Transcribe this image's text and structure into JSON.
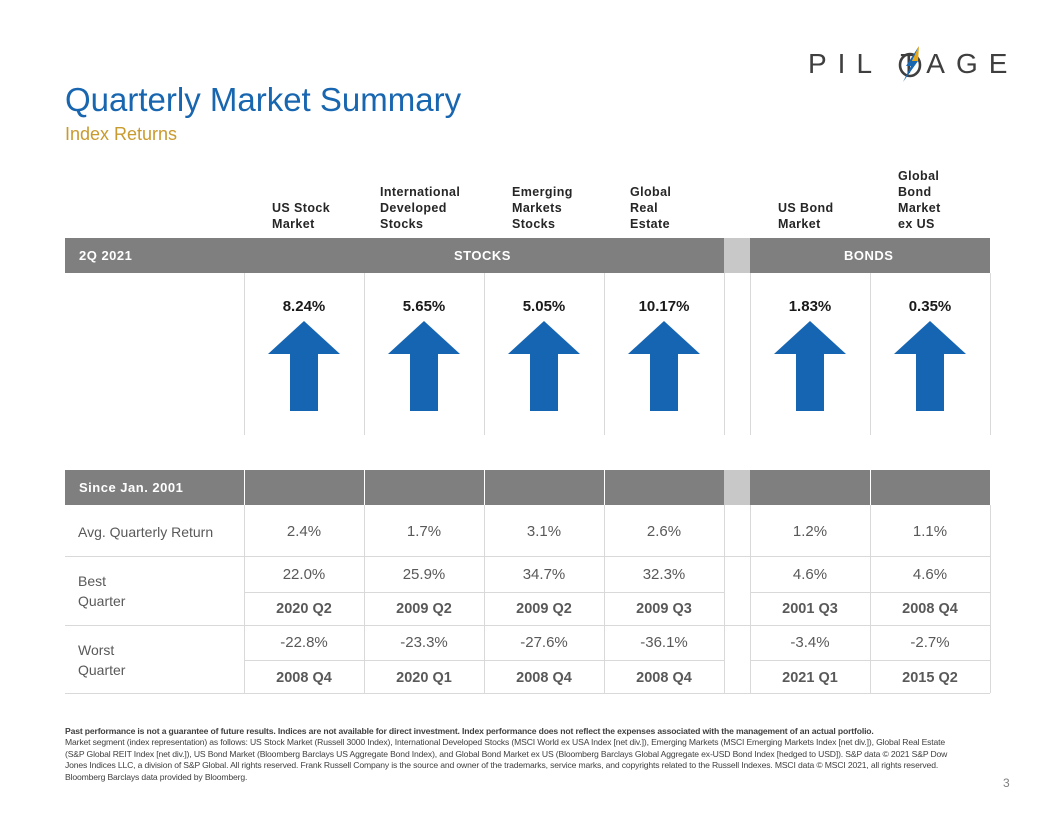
{
  "brand": {
    "logo_text": "PIL TAGE",
    "accent_color": "#1866b0",
    "bolt_colors": [
      "#1866b0",
      "#e6a817"
    ]
  },
  "header": {
    "title": "Quarterly Market Summary",
    "subtitle": "Index Returns"
  },
  "columns": [
    {
      "label": "US Stock\nMarket"
    },
    {
      "label": "International\nDeveloped\nStocks"
    },
    {
      "label": "Emerging\nMarkets\nStocks"
    },
    {
      "label": "Global\nReal\nEstate"
    },
    {
      "label": "US Bond\nMarket"
    },
    {
      "label": "Global\nBond\nMarket\nex US"
    }
  ],
  "quarter_section": {
    "period_label": "2Q 2021",
    "stocks_label": "STOCKS",
    "bonds_label": "BONDS",
    "returns": [
      "8.24%",
      "5.65%",
      "5.05%",
      "10.17%",
      "1.83%",
      "0.35%"
    ],
    "arrow_direction": [
      "up-arrow-icon",
      "up-arrow-icon",
      "up-arrow-icon",
      "up-arrow-icon",
      "up-arrow-icon",
      "up-arrow-icon"
    ]
  },
  "since_section": {
    "period_label": "Since Jan. 2001",
    "avg_label": "Avg. Quarterly Return",
    "avg": [
      "2.4%",
      "1.7%",
      "3.1%",
      "2.6%",
      "1.2%",
      "1.1%"
    ],
    "best_label": "Best\nQuarter",
    "best_values": [
      "22.0%",
      "25.9%",
      "34.7%",
      "32.3%",
      "4.6%",
      "4.6%"
    ],
    "best_quarters": [
      "2020 Q2",
      "2009 Q2",
      "2009 Q2",
      "2009 Q3",
      "2001 Q3",
      "2008 Q4"
    ],
    "worst_label": "Worst\nQuarter",
    "worst_values": [
      "-22.8%",
      "-23.3%",
      "-27.6%",
      "-36.1%",
      "-3.4%",
      "-2.7%"
    ],
    "worst_quarters": [
      "2008 Q4",
      "2020 Q1",
      "2008 Q4",
      "2008 Q4",
      "2021 Q1",
      "2015 Q2"
    ]
  },
  "footer": {
    "disclaimer": "Past performance is not a guarantee of future results. Indices are not available for direct investment. Index performance does not reflect the expenses associated with the management of an actual portfolio.",
    "notes": "Market segment (index representation) as follows: US Stock Market (Russell 3000 Index), International Developed Stocks (MSCI World ex USA Index [net div.]), Emerging Markets (MSCI Emerging Markets Index [net div.]), Global Real Estate (S&P Global REIT Index [net div.]), US Bond Market (Bloomberg Barclays US Aggregate Bond Index), and Global Bond Market ex US (Bloomberg Barclays Global Aggregate ex-USD Bond Index [hedged to USD]). S&P data © 2021 S&P Dow Jones Indices LLC, a division of S&P Global. All rights reserved. Frank Russell Company is the source and owner of the trademarks, service marks, and copyrights related to the Russell Indexes. MSCI data © MSCI 2021, all rights reserved. Bloomberg Barclays data provided by Bloomberg.",
    "page_number": "3"
  }
}
